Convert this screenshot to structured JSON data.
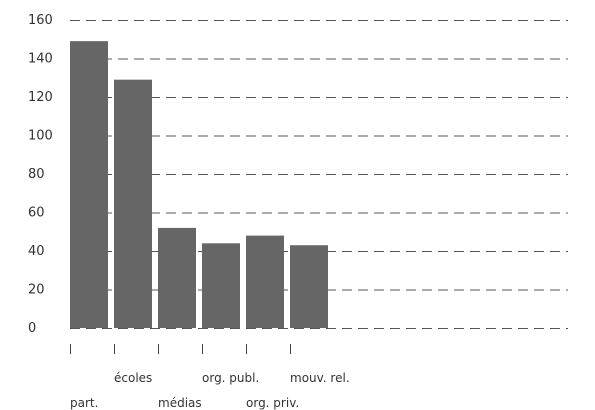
{
  "chart_data": {
    "type": "bar",
    "categories": [
      "part.",
      "écoles",
      "médias",
      "org. publ.",
      "org. priv.",
      "mouv. rel."
    ],
    "values": [
      149,
      129,
      52,
      44,
      48,
      43
    ],
    "title": "",
    "xlabel": "",
    "ylabel": "",
    "ylim": [
      0,
      160
    ],
    "yticks": [
      0,
      20,
      40,
      60,
      80,
      100,
      120,
      140,
      160
    ],
    "grid": true,
    "legend": "none",
    "colors": {
      "bar": "#666666",
      "grid": "#555555",
      "text": "#333333"
    }
  }
}
